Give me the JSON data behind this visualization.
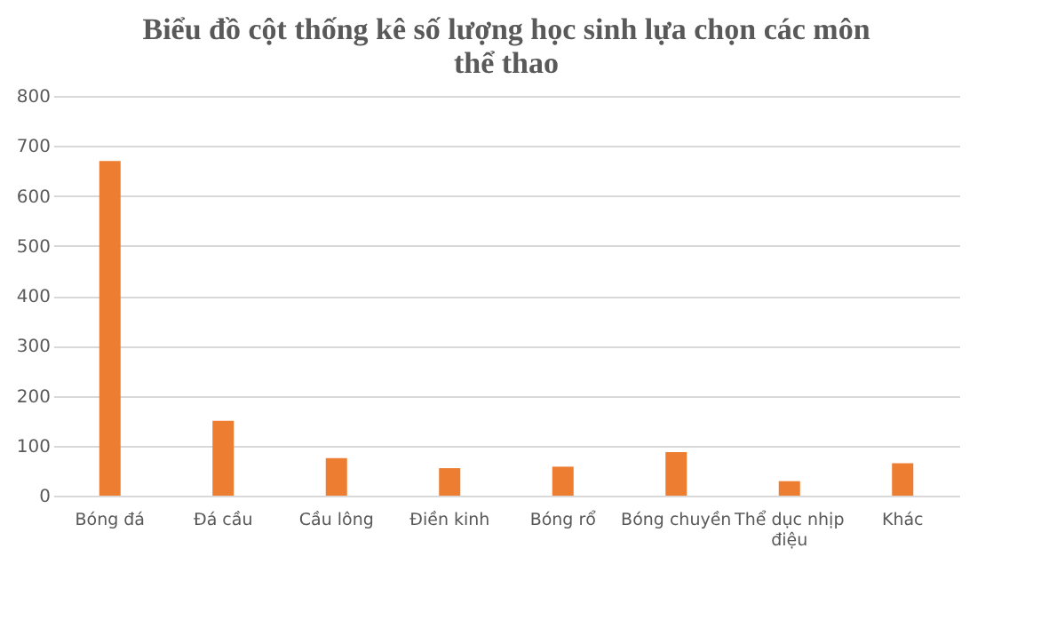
{
  "chart_data": {
    "type": "bar",
    "title": "Biểu đồ cột thống kê số lượng học sinh lựa chọn các môn thể thao",
    "categories": [
      "Bóng đá",
      "Đá cầu",
      "Cầu lông",
      "Điền kinh",
      "Bóng rổ",
      "Bóng chuyền",
      "Thể dục nhịp điệu",
      "Khác"
    ],
    "values": [
      670,
      150,
      75,
      55,
      58,
      87,
      29,
      65
    ],
    "color": "#ed7d31",
    "ylim": [
      0,
      800
    ],
    "yticks": [
      0,
      100,
      200,
      300,
      400,
      500,
      600,
      700,
      800
    ],
    "grid": "y"
  }
}
